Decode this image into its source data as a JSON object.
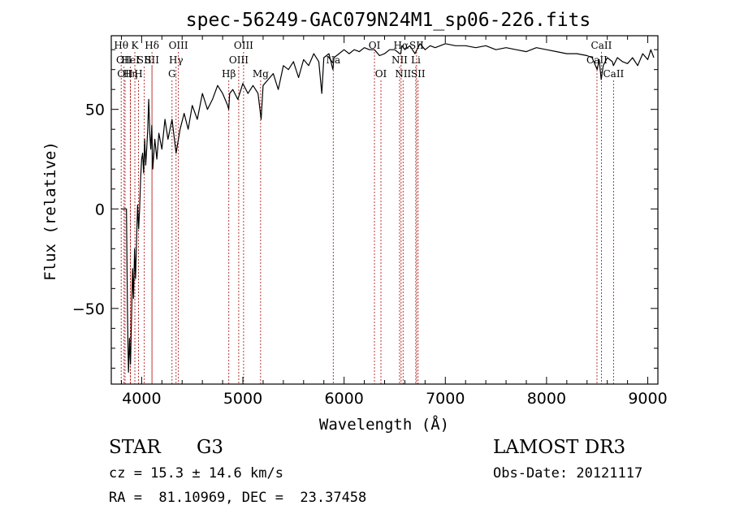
{
  "chart_data": {
    "type": "line",
    "title": "spec-56249-GAC079N24M1_sp06-226.fits",
    "xlabel": "Wavelength (Å)",
    "ylabel": "Flux (relative)",
    "xlim": [
      3700,
      9100
    ],
    "ylim": [
      -88,
      87
    ],
    "x_ticks": [
      4000,
      5000,
      6000,
      7000,
      8000,
      9000
    ],
    "x_tick_labels": [
      "4000",
      "5000",
      "6000",
      "7000",
      "8000",
      "9000"
    ],
    "y_ticks": [
      -50,
      0,
      50
    ],
    "y_tick_labels": [
      "−50",
      "0",
      "50"
    ],
    "series": [
      {
        "name": "flux",
        "x": [
          3800,
          3830,
          3850,
          3860,
          3865,
          3870,
          3875,
          3880,
          3890,
          3900,
          3910,
          3920,
          3930,
          3940,
          3950,
          3960,
          3970,
          3980,
          3990,
          4000,
          4010,
          4020,
          4030,
          4040,
          4050,
          4060,
          4070,
          4080,
          4090,
          4100,
          4110,
          4130,
          4150,
          4170,
          4200,
          4230,
          4260,
          4300,
          4340,
          4380,
          4420,
          4460,
          4500,
          4550,
          4600,
          4650,
          4700,
          4750,
          4800,
          4850,
          4860,
          4870,
          4900,
          4950,
          5000,
          5050,
          5100,
          5150,
          5180,
          5200,
          5250,
          5300,
          5350,
          5400,
          5450,
          5500,
          5550,
          5600,
          5650,
          5700,
          5750,
          5780,
          5800,
          5850,
          5890,
          5900,
          5950,
          6000,
          6050,
          6100,
          6150,
          6200,
          6250,
          6300,
          6350,
          6400,
          6450,
          6500,
          6550,
          6560,
          6570,
          6600,
          6650,
          6700,
          6750,
          6800,
          6850,
          6900,
          6950,
          7000,
          7100,
          7200,
          7300,
          7400,
          7500,
          7600,
          7700,
          7800,
          7900,
          8000,
          8100,
          8200,
          8300,
          8400,
          8450,
          8500,
          8520,
          8540,
          8560,
          8600,
          8650,
          8660,
          8700,
          8750,
          8800,
          8850,
          8900,
          8950,
          9000,
          9030,
          9060
        ],
        "values": [
          0,
          0,
          0,
          -50,
          -70,
          -82,
          -75,
          -65,
          -78,
          -55,
          -30,
          -45,
          -20,
          -35,
          -15,
          2,
          -10,
          0,
          15,
          25,
          28,
          18,
          35,
          22,
          30,
          40,
          55,
          38,
          30,
          42,
          20,
          35,
          25,
          38,
          30,
          45,
          35,
          45,
          28,
          40,
          48,
          40,
          52,
          45,
          58,
          50,
          55,
          62,
          58,
          52,
          50,
          58,
          60,
          55,
          63,
          58,
          62,
          58,
          45,
          62,
          65,
          68,
          60,
          72,
          70,
          74,
          66,
          75,
          72,
          78,
          74,
          58,
          76,
          78,
          70,
          76,
          78,
          80,
          78,
          80,
          79,
          81,
          80,
          80,
          77,
          78,
          80,
          80,
          78,
          78,
          82,
          80,
          82,
          78,
          83,
          80,
          82,
          81,
          82,
          83,
          82,
          82,
          81,
          82,
          80,
          81,
          80,
          79,
          81,
          80,
          79,
          78,
          78,
          77,
          76,
          70,
          75,
          65,
          72,
          76,
          74,
          72,
          76,
          74,
          73,
          76,
          72,
          78,
          75,
          80,
          76
        ]
      }
    ],
    "spectral_lines": [
      {
        "x": 3798,
        "label": "Hθ",
        "row": 0
      },
      {
        "x": 3826,
        "label": "OII",
        "row": 1
      },
      {
        "x": 3836,
        "label": "OII",
        "row": 2
      },
      {
        "x": 3889,
        "label": "HeI",
        "row": 1
      },
      {
        "x": 3889,
        "label": "Hη",
        "row": 2
      },
      {
        "x": 3933,
        "label": "K",
        "row": 0
      },
      {
        "x": 3969,
        "label": "H",
        "row": 2
      },
      {
        "x": 4026,
        "label": "SII",
        "row": 1
      },
      {
        "x": 4102,
        "label": "Hδ",
        "row": 0
      },
      {
        "x": 4102,
        "label": "SII",
        "row": 1
      },
      {
        "x": 4300,
        "label": "G",
        "row": 2
      },
      {
        "x": 4340,
        "label": "Hγ",
        "row": 1
      },
      {
        "x": 4363,
        "label": "OIII",
        "row": 0
      },
      {
        "x": 4861,
        "label": "Hβ",
        "row": 2
      },
      {
        "x": 4959,
        "label": "OIII",
        "row": 1
      },
      {
        "x": 5007,
        "label": "OIII",
        "row": 0
      },
      {
        "x": 5175,
        "label": "Mg",
        "row": 2
      },
      {
        "x": 5893,
        "label": "Na",
        "row": 1
      },
      {
        "x": 6300,
        "label": "OI",
        "row": 0
      },
      {
        "x": 6364,
        "label": "OI",
        "row": 2
      },
      {
        "x": 6548,
        "label": "NII",
        "row": 1
      },
      {
        "x": 6563,
        "label": "Hα",
        "row": 0
      },
      {
        "x": 6583,
        "label": "NII",
        "row": 2
      },
      {
        "x": 6708,
        "label": "Li",
        "row": 1
      },
      {
        "x": 6716,
        "label": "SII",
        "row": 0
      },
      {
        "x": 6731,
        "label": "SII",
        "row": 2
      },
      {
        "x": 8498,
        "label": "CaII",
        "row": 1
      },
      {
        "x": 8542,
        "label": "CaII",
        "row": 0
      },
      {
        "x": 8662,
        "label": "CaII",
        "row": 2
      }
    ]
  },
  "info": {
    "object_class": "STAR",
    "subclass": "G3",
    "survey": "LAMOST DR3",
    "cz": "cz = 15.3 ± 14.6 km/s",
    "obs_date": "Obs-Date: 20121117",
    "coords": "RA =  81.10969, DEC =  23.37458"
  },
  "colors": {
    "line": "#000000",
    "spectral_marker": "#b22222"
  }
}
